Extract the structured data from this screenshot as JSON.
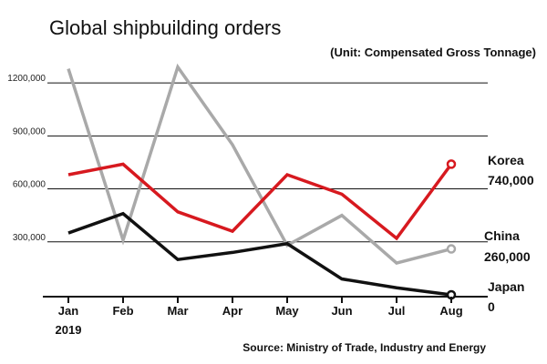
{
  "chart_data": {
    "type": "line",
    "title": "Global shipbuilding orders",
    "unit_note": "(Unit: Compensated Gross Tonnage)",
    "source": "Source: Ministry of Trade, Industry and Energy",
    "categories": [
      "Jan",
      "Feb",
      "Mar",
      "Apr",
      "May",
      "Jun",
      "Jul",
      "Aug"
    ],
    "year_label": "2019",
    "ylim": [
      0,
      1350000
    ],
    "yticks": [
      300000,
      600000,
      900000,
      1200000
    ],
    "ytick_labels": [
      "300,000",
      "600,000",
      "900,000",
      "1200,000"
    ],
    "grid": true,
    "series": [
      {
        "name": "China",
        "end_value_label": "260,000",
        "color": "#a9a9a9",
        "values": [
          1280000,
          310000,
          1290000,
          850000,
          280000,
          450000,
          180000,
          260000
        ]
      },
      {
        "name": "Korea",
        "end_value_label": "740,000",
        "color": "#d7191f",
        "values": [
          680000,
          740000,
          470000,
          360000,
          680000,
          570000,
          320000,
          740000
        ]
      },
      {
        "name": "Japan",
        "end_value_label": "0",
        "color": "#111111",
        "values": [
          350000,
          460000,
          200000,
          240000,
          290000,
          90000,
          40000,
          0
        ]
      }
    ]
  }
}
